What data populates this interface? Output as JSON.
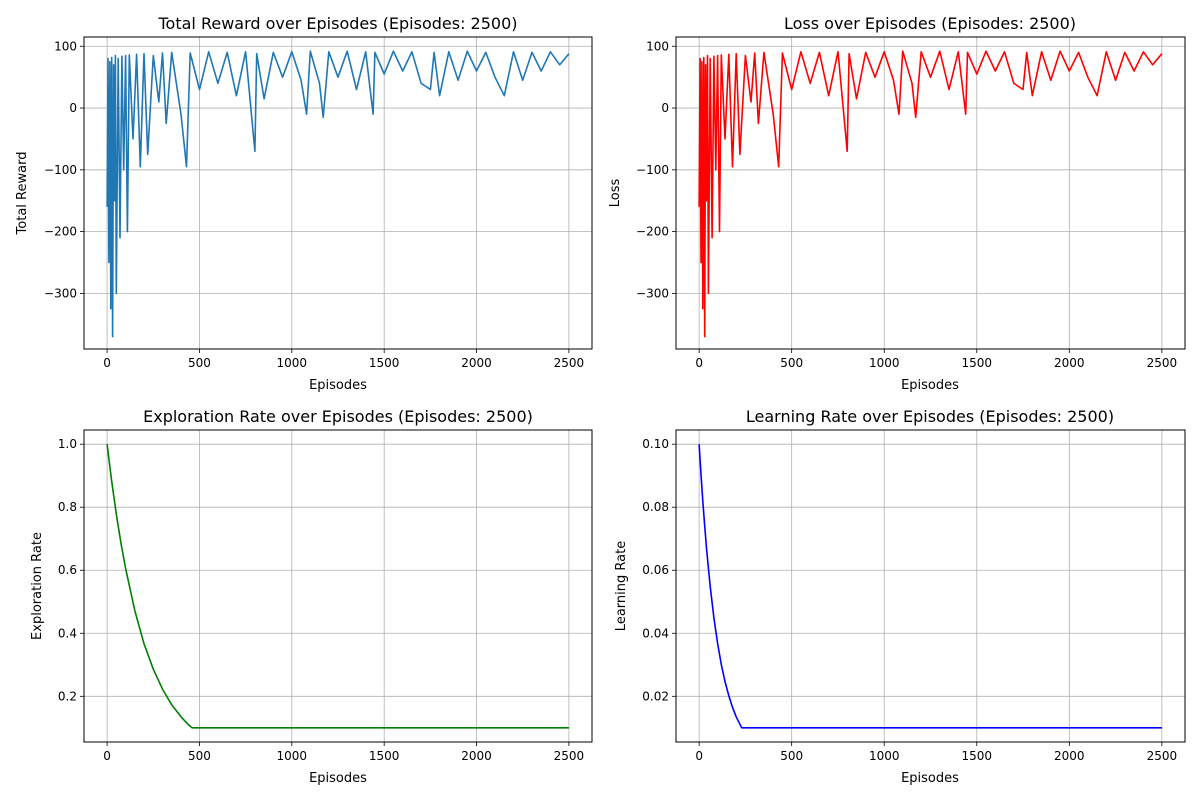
{
  "chart_data": [
    {
      "id": "reward",
      "type": "line",
      "title": "Total Reward over Episodes (Episodes: 2500)",
      "xlabel": "Episodes",
      "ylabel": "Total Reward",
      "xlim": [
        -125,
        2625
      ],
      "ylim": [
        -390,
        115
      ],
      "xticks": [
        0,
        500,
        1000,
        1500,
        2000,
        2500
      ],
      "yticks": [
        -300,
        -200,
        -100,
        0,
        100
      ],
      "grid": true,
      "color": "#1f77b4",
      "series": [
        {
          "x": [
            0,
            5,
            10,
            15,
            20,
            25,
            30,
            35,
            40,
            45,
            50,
            60,
            70,
            80,
            90,
            100,
            110,
            120,
            140,
            160,
            180,
            200,
            220,
            250,
            280,
            300,
            320,
            350,
            400,
            430,
            450,
            500,
            550,
            600,
            650,
            700,
            750,
            800,
            810,
            850,
            900,
            950,
            1000,
            1050,
            1080,
            1100,
            1150,
            1170,
            1200,
            1250,
            1300,
            1350,
            1400,
            1440,
            1450,
            1500,
            1550,
            1600,
            1650,
            1700,
            1750,
            1770,
            1800,
            1850,
            1900,
            1950,
            2000,
            2050,
            2100,
            2150,
            2200,
            2250,
            2300,
            2350,
            2400,
            2450,
            2500
          ],
          "y": [
            -160,
            80,
            -250,
            75,
            -325,
            82,
            -370,
            70,
            -150,
            85,
            -300,
            80,
            -210,
            84,
            -100,
            85,
            -200,
            86,
            -50,
            87,
            -95,
            88,
            -75,
            85,
            10,
            89,
            -25,
            90,
            -10,
            -95,
            89,
            30,
            91,
            40,
            90,
            20,
            91,
            -70,
            88,
            15,
            90,
            50,
            91,
            45,
            -10,
            92,
            40,
            -15,
            91,
            50,
            92,
            30,
            91,
            -10,
            90,
            55,
            92,
            60,
            91,
            40,
            30,
            90,
            20,
            91,
            45,
            92,
            60,
            90,
            50,
            20,
            91,
            45,
            90,
            60,
            91,
            70,
            88
          ]
        }
      ]
    },
    {
      "id": "loss",
      "type": "line",
      "title": "Loss over Episodes (Episodes: 2500)",
      "xlabel": "Episodes",
      "ylabel": "Loss",
      "xlim": [
        -125,
        2625
      ],
      "ylim": [
        -390,
        115
      ],
      "xticks": [
        0,
        500,
        1000,
        1500,
        2000,
        2500
      ],
      "yticks": [
        -300,
        -200,
        -100,
        0,
        100
      ],
      "grid": true,
      "color": "#ff0000",
      "series": [
        {
          "x": [
            0,
            5,
            10,
            15,
            20,
            25,
            30,
            35,
            40,
            45,
            50,
            60,
            70,
            80,
            90,
            100,
            110,
            120,
            140,
            160,
            180,
            200,
            220,
            250,
            280,
            300,
            320,
            350,
            400,
            430,
            450,
            500,
            550,
            600,
            650,
            700,
            750,
            800,
            810,
            850,
            900,
            950,
            1000,
            1050,
            1080,
            1100,
            1150,
            1170,
            1200,
            1250,
            1300,
            1350,
            1400,
            1440,
            1450,
            1500,
            1550,
            1600,
            1650,
            1700,
            1750,
            1770,
            1800,
            1850,
            1900,
            1950,
            2000,
            2050,
            2100,
            2150,
            2200,
            2250,
            2300,
            2350,
            2400,
            2450,
            2500
          ],
          "y": [
            -160,
            80,
            -250,
            75,
            -325,
            82,
            -370,
            70,
            -150,
            85,
            -300,
            80,
            -210,
            84,
            -100,
            85,
            -200,
            86,
            -50,
            87,
            -95,
            88,
            -75,
            85,
            10,
            89,
            -25,
            90,
            -10,
            -95,
            89,
            30,
            91,
            40,
            90,
            20,
            91,
            -70,
            88,
            15,
            90,
            50,
            91,
            45,
            -10,
            92,
            40,
            -15,
            91,
            50,
            92,
            30,
            91,
            -10,
            90,
            55,
            92,
            60,
            91,
            40,
            30,
            90,
            20,
            91,
            45,
            92,
            60,
            90,
            50,
            20,
            91,
            45,
            90,
            60,
            91,
            70,
            88
          ]
        }
      ]
    },
    {
      "id": "exploration",
      "type": "line",
      "title": "Exploration Rate over Episodes (Episodes: 2500)",
      "xlabel": "Episodes",
      "ylabel": "Exploration Rate",
      "xlim": [
        -125,
        2625
      ],
      "ylim": [
        0.055,
        1.045
      ],
      "xticks": [
        0,
        500,
        1000,
        1500,
        2000,
        2500
      ],
      "yticks": [
        0.2,
        0.4,
        0.6,
        0.8,
        1.0
      ],
      "ytick_labels": [
        "0.2",
        "0.4",
        "0.6",
        "0.8",
        "1.0"
      ],
      "grid": true,
      "color": "#008000",
      "series": [
        {
          "x": [
            0,
            25,
            50,
            75,
            100,
            150,
            200,
            250,
            300,
            350,
            400,
            440,
            460,
            500,
            1000,
            1500,
            2000,
            2500
          ],
          "y": [
            1.0,
            0.882,
            0.778,
            0.687,
            0.606,
            0.472,
            0.367,
            0.286,
            0.223,
            0.173,
            0.135,
            0.11,
            0.1,
            0.1,
            0.1,
            0.1,
            0.1,
            0.1
          ]
        }
      ]
    },
    {
      "id": "learning",
      "type": "line",
      "title": "Learning Rate over Episodes (Episodes: 2500)",
      "xlabel": "Episodes",
      "ylabel": "Learning Rate",
      "xlim": [
        -125,
        2625
      ],
      "ylim": [
        0.0055,
        0.1045
      ],
      "xticks": [
        0,
        500,
        1000,
        1500,
        2000,
        2500
      ],
      "yticks": [
        0.02,
        0.04,
        0.06,
        0.08,
        0.1
      ],
      "ytick_labels": [
        "0.02",
        "0.04",
        "0.06",
        "0.08",
        "0.10"
      ],
      "grid": true,
      "color": "#0000ff",
      "series": [
        {
          "x": [
            0,
            10,
            20,
            30,
            40,
            50,
            60,
            80,
            100,
            120,
            140,
            160,
            180,
            200,
            230,
            500,
            1000,
            1500,
            2000,
            2500
          ],
          "y": [
            0.1,
            0.0905,
            0.0819,
            0.0741,
            0.067,
            0.0607,
            0.0549,
            0.0449,
            0.0368,
            0.0301,
            0.0247,
            0.0202,
            0.0165,
            0.0135,
            0.01,
            0.01,
            0.01,
            0.01,
            0.01,
            0.01
          ]
        }
      ]
    }
  ]
}
